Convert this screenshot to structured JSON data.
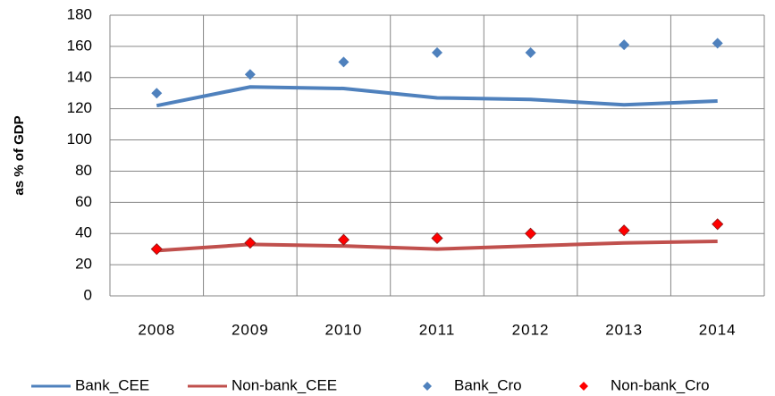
{
  "chart_data": {
    "type": "line",
    "y_label": "as % of GDP",
    "categories": [
      "2008",
      "2009",
      "2010",
      "2011",
      "2012",
      "2013",
      "2014"
    ],
    "series": [
      {
        "name": "Bank_CEE",
        "color": "#4f81bd",
        "mode": "line",
        "values": [
          122,
          134,
          133,
          127,
          126,
          122.5,
          125
        ]
      },
      {
        "name": "Non-bank_CEE",
        "color": "#c0504d",
        "mode": "line",
        "values": [
          29,
          33,
          32,
          30,
          32,
          34,
          35
        ]
      },
      {
        "name": "Bank_Cro",
        "color": "#4f81bd",
        "mode": "markers",
        "values": [
          130,
          142,
          150,
          156,
          156,
          161,
          162
        ]
      },
      {
        "name": "Non-bank_Cro",
        "color": "#ff0000",
        "mode": "markers",
        "values": [
          30,
          34,
          36,
          37,
          40,
          42,
          46
        ]
      }
    ],
    "ylim": [
      0,
      180
    ],
    "yticks": [
      0,
      20,
      40,
      60,
      80,
      100,
      120,
      140,
      160,
      180
    ],
    "grid": true,
    "legend": "bottom"
  }
}
